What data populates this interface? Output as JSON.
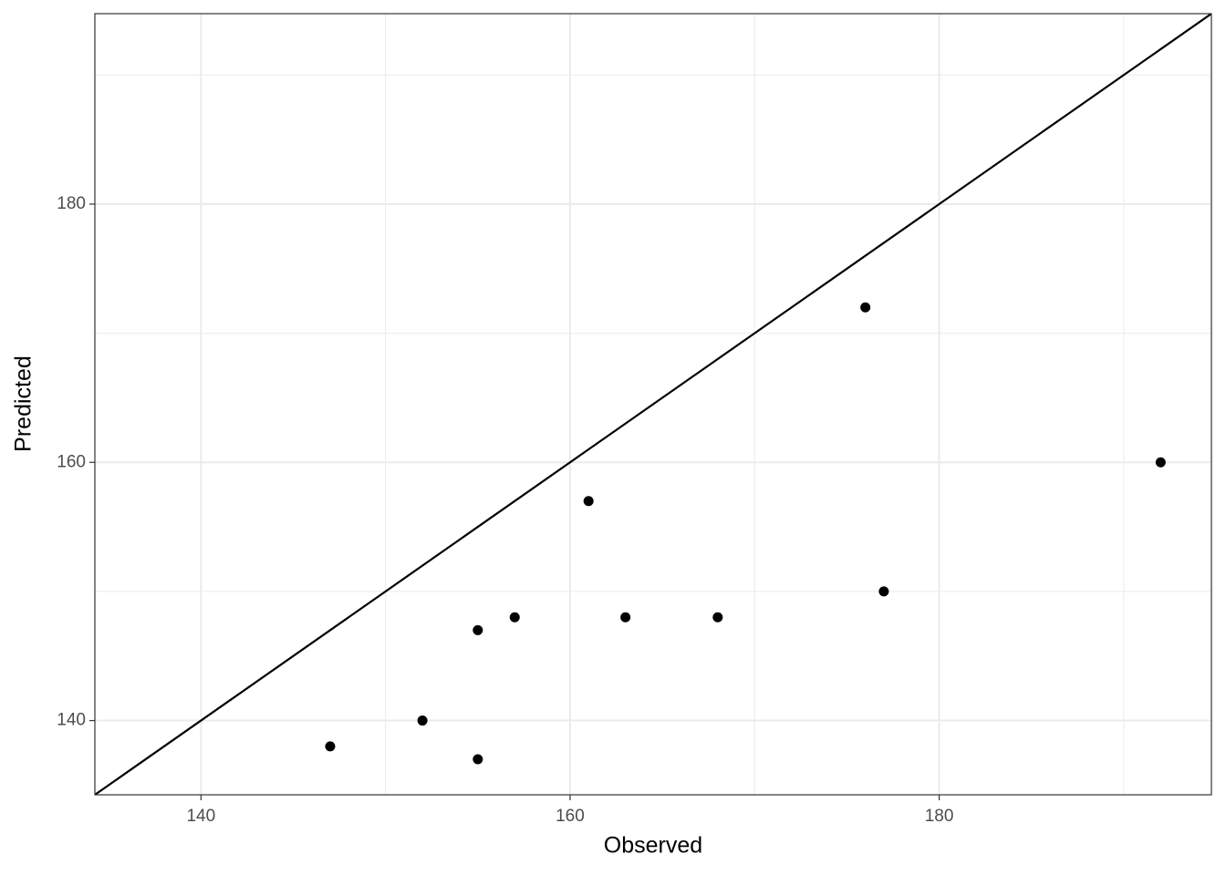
{
  "chart_data": {
    "type": "scatter",
    "x_label": "Observed",
    "y_label": "Predicted",
    "x": [
      147,
      152,
      155,
      155,
      157,
      161,
      163,
      168,
      176,
      177,
      192
    ],
    "values": [
      138,
      140,
      137,
      147,
      148,
      157,
      148,
      148,
      172,
      150,
      160
    ],
    "color": "#000000",
    "xlim": [
      134.25,
      194.75
    ],
    "ylim": [
      134.25,
      194.75
    ],
    "xticks": [
      140,
      160,
      180
    ],
    "yticks": [
      140,
      160,
      180
    ],
    "x_minor_breaks": [
      150,
      170,
      190
    ],
    "y_minor_breaks": [
      150,
      170,
      190
    ],
    "grid": true,
    "reference_line": {
      "slope": 1,
      "intercept": 0
    }
  }
}
